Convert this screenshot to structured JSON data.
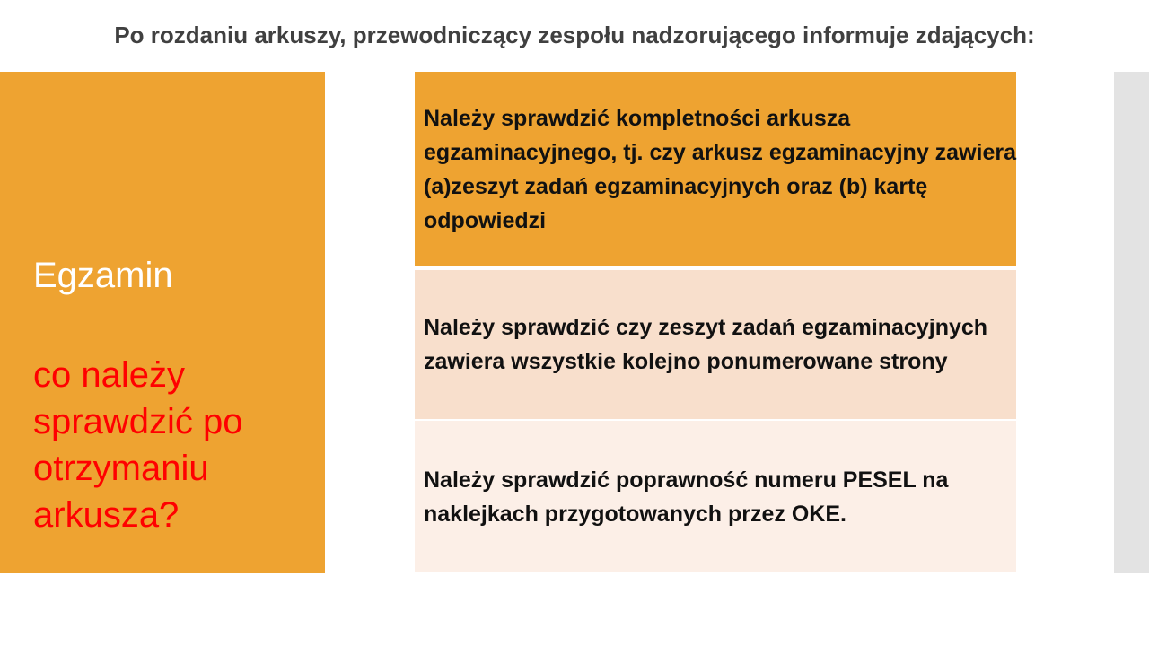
{
  "title": "Po rozdaniu arkuszy, przewodniczący zespołu nadzorującego informuje zdających:",
  "left_panel": {
    "heading": "Egzamin",
    "question": "co należy sprawdzić po otrzymaniu arkusza?"
  },
  "items": [
    {
      "text": "Należy sprawdzić kompletności arkusza egzaminacyjnego, tj. czy arkusz egzaminacyjny zawiera (a)zeszyt zadań egzaminacyjnych oraz (b) kartę odpowiedzi"
    },
    {
      "text": "Należy sprawdzić czy zeszyt zadań egzaminacyjnych zawiera wszystkie kolejno ponumerowane strony"
    },
    {
      "text": "Należy sprawdzić poprawność numeru PESEL na naklejkach przygotowanych przez OKE."
    }
  ],
  "colors": {
    "accent": "#eea331",
    "question": "#ff0000",
    "item2_bg": "#f8dfcc",
    "item3_bg": "#fcefe7"
  }
}
